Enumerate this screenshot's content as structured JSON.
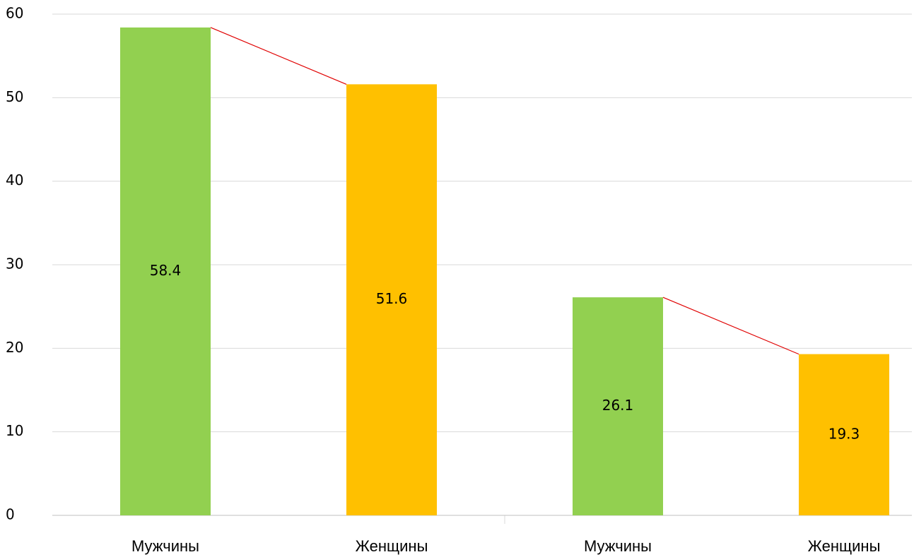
{
  "chart_data": {
    "type": "bar",
    "categories": [
      "Мужчины",
      "Женщины",
      "Мужчины",
      "Женщины"
    ],
    "values": [
      58.4,
      51.6,
      26.1,
      19.3
    ],
    "colors": [
      "#92d050",
      "#ffc000",
      "#92d050",
      "#ffc000"
    ],
    "connector_color": "#e00000",
    "ylim": [
      0,
      60
    ],
    "yticks": [
      0,
      10,
      20,
      30,
      40,
      50,
      60
    ],
    "grid": true
  }
}
